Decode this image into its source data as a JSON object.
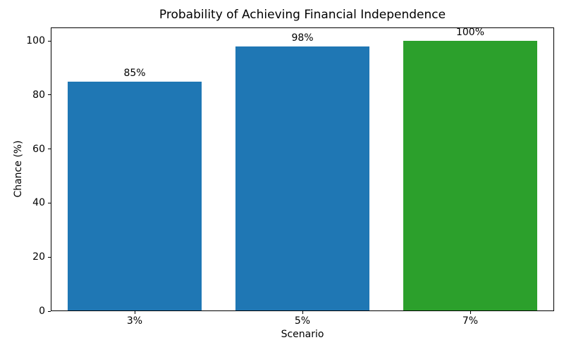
{
  "chart_data": {
    "type": "bar",
    "title": "Probability of Achieving Financial Independence",
    "xlabel": "Scenario",
    "ylabel": "Chance (%)",
    "categories": [
      "3%",
      "5%",
      "7%"
    ],
    "values": [
      85,
      98,
      100
    ],
    "value_labels": [
      "85%",
      "98%",
      "100%"
    ],
    "bar_colors": [
      "#1f77b4",
      "#1f77b4",
      "#2ca02c"
    ],
    "ytick_labels": [
      "0",
      "20",
      "40",
      "60",
      "80",
      "100"
    ],
    "ytick_values": [
      0,
      20,
      40,
      60,
      80,
      100
    ],
    "ylim": [
      0,
      105
    ],
    "bar_width_fraction": 0.8,
    "grid": false,
    "legend": "none",
    "spine_color": "#000000",
    "text_color": "#000000",
    "background_color": "#ffffff"
  }
}
